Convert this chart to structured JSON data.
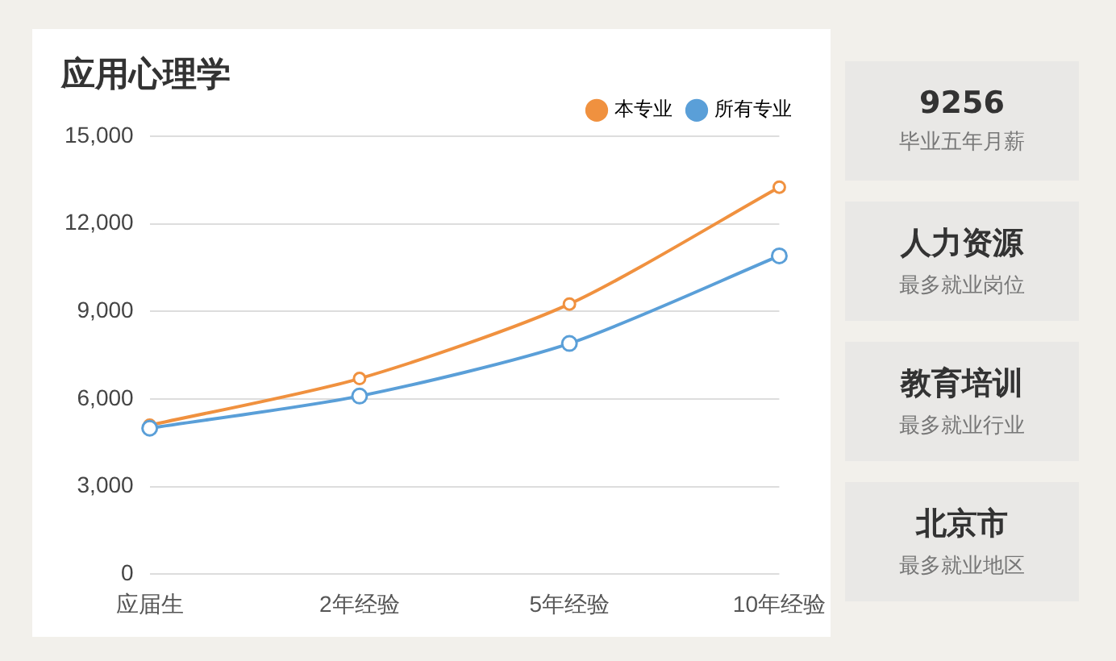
{
  "chart_data": [
    {
      "type": "line",
      "title": "应用心理学",
      "categories": [
        "应届生",
        "2年经验",
        "5年经验",
        "10年经验"
      ],
      "series": [
        {
          "name": "本专业",
          "color": "#f0913f",
          "values": [
            5100,
            6700,
            9250,
            13250
          ]
        },
        {
          "name": "所有专业",
          "color": "#5a9fd8",
          "values": [
            5000,
            6100,
            7900,
            10900
          ]
        }
      ],
      "ylim": [
        0,
        15000
      ],
      "yticks": [
        {
          "value": 0,
          "label": "0"
        },
        {
          "value": 3000,
          "label": "3,000"
        },
        {
          "value": 6000,
          "label": "6,000"
        },
        {
          "value": 9000,
          "label": "9,000"
        },
        {
          "value": 12000,
          "label": "12,000"
        },
        {
          "value": 15000,
          "label": "15,000"
        }
      ],
      "grid": "y",
      "legend": "top right",
      "marker": "circle",
      "line_style": "solid"
    },
    {
      "type": "other",
      "annotations": [
        "9256",
        "毕业五年月薪",
        "人力资源",
        "最多就业岗位",
        "教育培训",
        "最多就业行业",
        "北京市",
        "最多就业地区"
      ]
    }
  ]
}
